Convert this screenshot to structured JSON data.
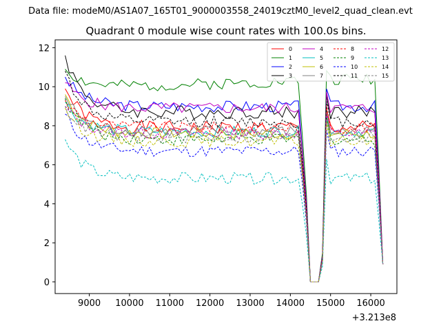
{
  "figure": {
    "suptitle": "Data file: modeM0/AS1A07_165T01_9000003558_24019cztM0_level2_quad_clean.evt"
  },
  "chart_data": {
    "type": "line",
    "title": "Quadrant 0 module wise count rates with 100.0s bins.",
    "xlabel": "",
    "ylabel": "",
    "x_offset_label": "+3.213e8",
    "xlim": [
      8150,
      16650
    ],
    "ylim": [
      -0.6,
      12.4
    ],
    "xticks": [
      9000,
      10000,
      11000,
      12000,
      13000,
      14000,
      15000,
      16000
    ],
    "xtick_labels": [
      "9000",
      "10000",
      "11000",
      "12000",
      "13000",
      "14000",
      "15000",
      "16000"
    ],
    "yticks": [
      0,
      2,
      4,
      6,
      8,
      10,
      12
    ],
    "ytick_labels": [
      "0",
      "2",
      "4",
      "6",
      "8",
      "10",
      "12"
    ],
    "legend_position": "upper-right",
    "grid": false,
    "x_start": 8400,
    "x_step": 100,
    "series": [
      {
        "name": "0",
        "color": "#ff0000",
        "dash": "solid",
        "start": 9.9,
        "level": 7.9,
        "wobble": 0.35,
        "seed": 1
      },
      {
        "name": "1",
        "color": "#008000",
        "dash": "solid",
        "start": 10.9,
        "level": 9.9,
        "wobble": 0.3,
        "seed": 2,
        "trend": 0.35
      },
      {
        "name": "2",
        "color": "#0000ff",
        "dash": "solid",
        "start": 10.5,
        "level": 9.0,
        "wobble": 0.3,
        "seed": 3
      },
      {
        "name": "3",
        "color": "#000000",
        "dash": "solid",
        "start": 11.6,
        "level": 8.7,
        "wobble": 0.35,
        "seed": 4
      },
      {
        "name": "4",
        "color": "#c000c0",
        "dash": "solid",
        "start": 10.2,
        "level": 8.9,
        "wobble": 0.3,
        "seed": 5
      },
      {
        "name": "5",
        "color": "#00bfbf",
        "dash": "solid",
        "start": 9.2,
        "level": 7.7,
        "wobble": 0.3,
        "seed": 6
      },
      {
        "name": "6",
        "color": "#bfbf00",
        "dash": "solid",
        "start": 9.6,
        "level": 7.6,
        "wobble": 0.3,
        "seed": 7
      },
      {
        "name": "7",
        "color": "#808080",
        "dash": "solid",
        "start": 9.5,
        "level": 7.7,
        "wobble": 0.3,
        "seed": 8
      },
      {
        "name": "8",
        "color": "#ff0000",
        "dash": "dashed",
        "start": 9.3,
        "level": 7.9,
        "wobble": 0.3,
        "seed": 9
      },
      {
        "name": "9",
        "color": "#008000",
        "dash": "dashed",
        "start": 9.4,
        "level": 7.3,
        "wobble": 0.3,
        "seed": 10
      },
      {
        "name": "10",
        "color": "#0000ff",
        "dash": "dashed",
        "start": 8.6,
        "level": 6.7,
        "wobble": 0.3,
        "seed": 11
      },
      {
        "name": "11",
        "color": "#000000",
        "dash": "dashed",
        "start": 10.8,
        "level": 8.2,
        "wobble": 0.3,
        "seed": 12
      },
      {
        "name": "12",
        "color": "#c000c0",
        "dash": "dashed",
        "start": 9.0,
        "level": 7.6,
        "wobble": 0.3,
        "seed": 13
      },
      {
        "name": "13",
        "color": "#00bfbf",
        "dash": "dashed",
        "start": 7.3,
        "level": 5.3,
        "wobble": 0.3,
        "seed": 14
      },
      {
        "name": "14",
        "color": "#bfbf00",
        "dash": "dashed",
        "start": 8.9,
        "level": 7.2,
        "wobble": 0.3,
        "seed": 15
      },
      {
        "name": "15",
        "color": "#808080",
        "dash": "dashed",
        "start": 9.0,
        "level": 7.4,
        "wobble": 0.3,
        "seed": 16
      }
    ],
    "gaps": [
      {
        "from": 14300,
        "to": 15000
      }
    ]
  }
}
